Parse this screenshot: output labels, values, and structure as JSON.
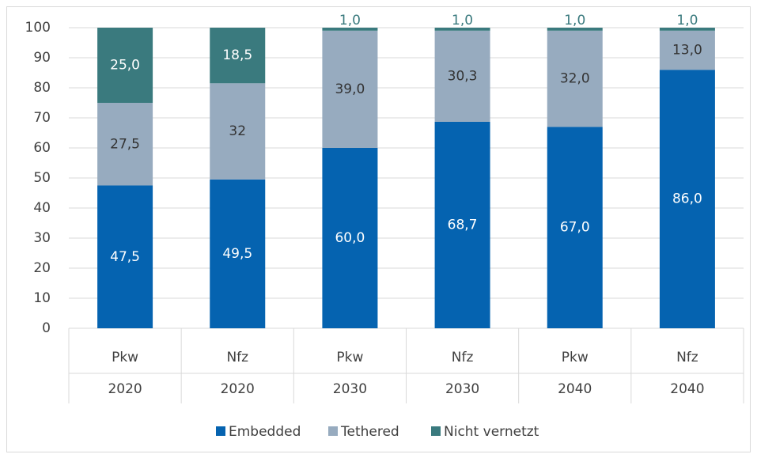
{
  "chart_data": {
    "type": "stacked_bar",
    "categories": [
      "Pkw",
      "Nfz",
      "Pkw",
      "Nfz",
      "Pkw",
      "Nfz"
    ],
    "category_groups": [
      "2020",
      "2020",
      "2030",
      "2030",
      "2040",
      "2040"
    ],
    "series": [
      {
        "name": "Embedded",
        "color": "#0563b0",
        "values": [
          47.5,
          49.5,
          60.0,
          68.7,
          67.0,
          86.0
        ],
        "value_labels": [
          "47,5",
          "49,5",
          "60,0",
          "68,7",
          "67,0",
          "86,0"
        ]
      },
      {
        "name": "Tethered",
        "color": "#97abbf",
        "values": [
          27.5,
          32,
          39.0,
          30.3,
          32.0,
          13.0
        ],
        "value_labels": [
          "27,5",
          "32",
          "39,0",
          "30,3",
          "32,0",
          "13,0"
        ]
      },
      {
        "name": "Nicht vernetzt",
        "color": "#3a7a7e",
        "values": [
          25.0,
          18.5,
          1.0,
          1.0,
          1.0,
          1.0
        ],
        "value_labels": [
          "25,0",
          "18,5",
          "1,0",
          "1,0",
          "1,0",
          "1,0"
        ]
      }
    ],
    "ylim": [
      0,
      100
    ],
    "yticks": [
      0,
      10,
      20,
      30,
      40,
      50,
      60,
      70,
      80,
      90,
      100
    ],
    "grid": true,
    "legend": "bottom"
  }
}
